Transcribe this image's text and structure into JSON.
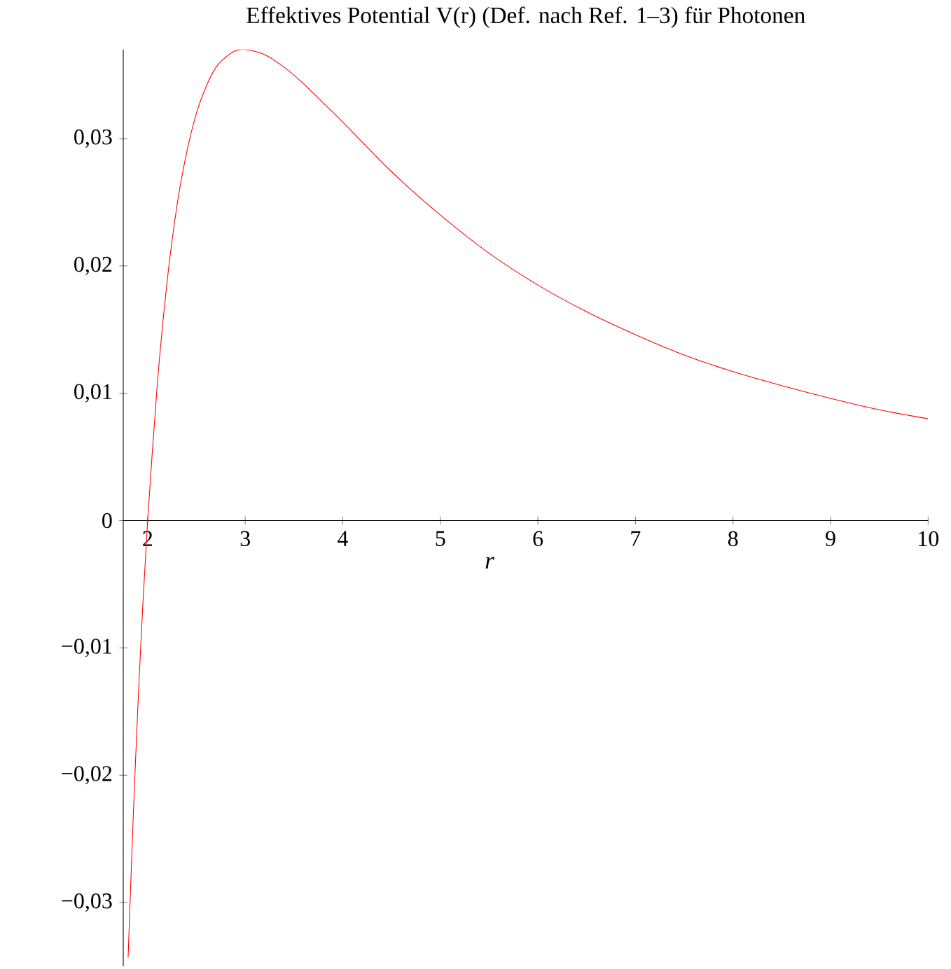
{
  "chart_data": {
    "type": "line",
    "title": "Effektives Potential V(r) (Def. nach Ref. 1–3) für Photonen",
    "xlabel": "r",
    "x": [
      1.8,
      1.85,
      1.9,
      1.95,
      2.0,
      2.1,
      2.2,
      2.3,
      2.4,
      2.5,
      2.6,
      2.7,
      2.8,
      2.9,
      3.0,
      3.2,
      3.4,
      3.6,
      3.8,
      4.0,
      4.5,
      5.0,
      5.5,
      6.0,
      6.5,
      7.0,
      7.5,
      8.0,
      8.5,
      9.0,
      9.5,
      10.0
    ],
    "series": [
      {
        "color": "#ff0000",
        "values": [
          -0.0343,
          -0.0237,
          -0.0146,
          -0.0067,
          0,
          0.0108,
          0.0188,
          0.0247,
          0.0289,
          0.032,
          0.0341,
          0.0356,
          0.0364,
          0.0369,
          0.037,
          0.0366,
          0.0356,
          0.0343,
          0.0328,
          0.0313,
          0.0274,
          0.024,
          0.021,
          0.0185,
          0.0164,
          0.0146,
          0.013,
          0.0117,
          0.0106,
          0.0096,
          0.0087,
          0.008
        ]
      }
    ],
    "xlim": [
      1.75,
      10
    ],
    "ylim": [
      -0.035,
      0.037
    ],
    "xticks": [
      2,
      3,
      4,
      5,
      6,
      7,
      8,
      9,
      10
    ],
    "yticks": [
      {
        "value": -0.03,
        "label": "−0,03"
      },
      {
        "value": -0.02,
        "label": "−0,02"
      },
      {
        "value": -0.01,
        "label": "−0,01"
      },
      {
        "value": 0,
        "label": "0"
      },
      {
        "value": 0.01,
        "label": "0,01"
      },
      {
        "value": 0.02,
        "label": "0,02"
      },
      {
        "value": 0.03,
        "label": "0,03"
      }
    ],
    "grid": false,
    "marker": "none",
    "line_style": "solid"
  }
}
